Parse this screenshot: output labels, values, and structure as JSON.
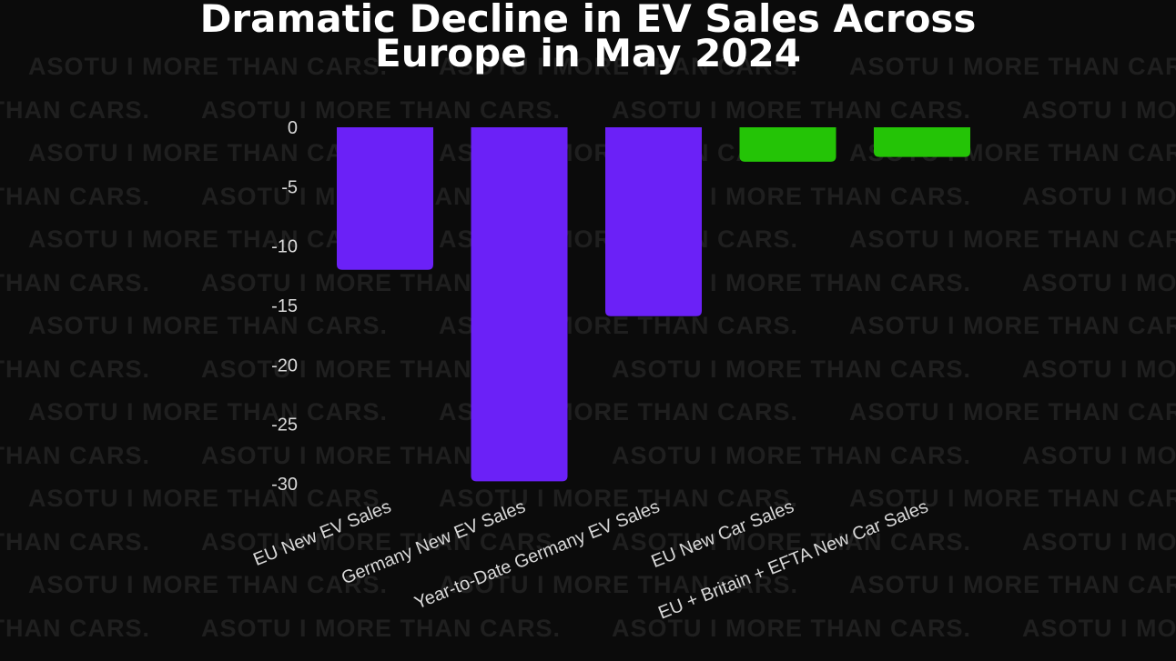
{
  "watermark": {
    "text": "ASOTU I MORE THAN CARS."
  },
  "title_line1": "Dramatic Decline in EV Sales Across",
  "title_line2": "Europe in May 2024",
  "colors": {
    "background": "#0b0b0b",
    "decline": "#6b21f7",
    "growth": "#24c406",
    "text": "#ffffff",
    "tick_text": "#d9d9d9"
  },
  "chart_data": {
    "type": "bar",
    "title": "Dramatic Decline in EV Sales Across Europe in May 2024",
    "categories": [
      "EU New EV Sales",
      "Germany New EV Sales",
      "Year-to-Date Germany EV Sales",
      "EU New Car Sales",
      "EU + Britain + EFTA New Car Sales"
    ],
    "values": [
      -12.0,
      -29.8,
      -15.9,
      -2.9,
      -2.5
    ],
    "ylim": [
      -30,
      0
    ],
    "yticks": [
      0,
      -5,
      -10,
      -15,
      -20,
      -25,
      -30
    ],
    "grid": false,
    "legend": "none"
  }
}
